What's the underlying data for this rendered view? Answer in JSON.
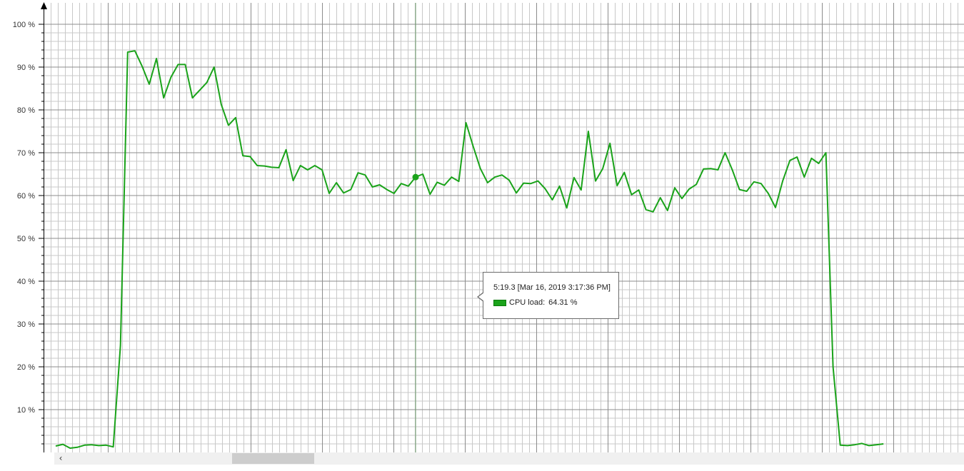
{
  "colors": {
    "series": "#1aa31a",
    "major_grid": "#8c8c8c",
    "minor_grid": "#c8c8c8",
    "axis": "#000000"
  },
  "chart_data": {
    "type": "line",
    "title": "",
    "xlabel": "",
    "ylabel": "",
    "ylim": [
      0,
      100
    ],
    "ytick_values": [
      10,
      20,
      30,
      40,
      50,
      60,
      70,
      80,
      90,
      100
    ],
    "ytick_labels": [
      "10 %",
      "20 %",
      "30 %",
      "40 %",
      "50 %",
      "60 %",
      "70 %",
      "80 %",
      "90 %",
      "100 %"
    ],
    "grid": true,
    "series": [
      {
        "name": "CPU load",
        "values": [
          1.5,
          1.9,
          1.0,
          1.2,
          1.7,
          1.8,
          1.6,
          1.7,
          1.3,
          25.0,
          93.5,
          93.8,
          90.2,
          86.0,
          92.0,
          82.8,
          87.6,
          90.6,
          90.6,
          82.8,
          84.6,
          86.4,
          90.0,
          81.3,
          76.4,
          78.2,
          69.3,
          69.1,
          67.0,
          66.9,
          66.6,
          66.5,
          70.7,
          63.5,
          67.0,
          66.0,
          67.0,
          66.0,
          60.5,
          63.0,
          60.6,
          61.4,
          65.3,
          64.8,
          62.0,
          62.5,
          61.4,
          60.5,
          62.8,
          62.2,
          64.31,
          65.0,
          60.3,
          63.1,
          62.4,
          64.3,
          63.3,
          77.0,
          71.5,
          66.3,
          63.0,
          64.3,
          64.8,
          63.6,
          60.6,
          62.9,
          62.8,
          63.4,
          61.6,
          59.0,
          62.2,
          57.1,
          64.2,
          61.3,
          75.0,
          63.4,
          66.3,
          72.2,
          62.3,
          65.4,
          60.2,
          61.3,
          56.7,
          56.2,
          59.5,
          56.5,
          61.8,
          59.3,
          61.5,
          62.6,
          66.2,
          66.3,
          66.0,
          70.0,
          66.0,
          61.4,
          61.0,
          63.2,
          62.8,
          60.5,
          57.2,
          63.4,
          68.2,
          69.0,
          64.3,
          68.7,
          67.5,
          70.0,
          20.0,
          1.7,
          1.6,
          1.8,
          2.1,
          1.6,
          1.8,
          2.0
        ]
      }
    ],
    "highlight": {
      "index": 50,
      "value": 64.31,
      "tooltip_title": "5:19.3 [Mar 16, 2019 3:17:36 PM]",
      "tooltip_series_label": "CPU load:",
      "tooltip_value": "64.31 %"
    }
  },
  "scrollbar": {
    "left_arrow": "‹"
  }
}
